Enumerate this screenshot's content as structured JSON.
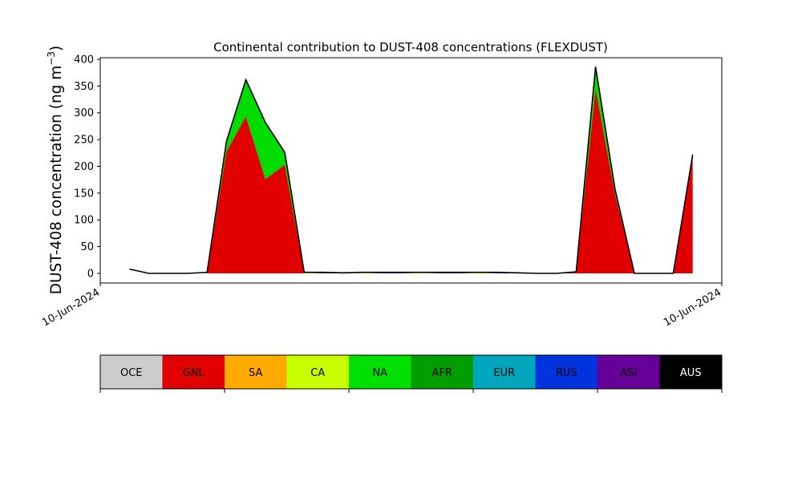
{
  "chart_data": {
    "type": "area",
    "title": "Continental contribution to DUST-408 concentrations (FLEXDUST)",
    "ylabel_main": "DUST-408 concentration (ng m",
    "ylabel_sup": "−3",
    "ylabel_close": ")",
    "xlabel": "",
    "ylim": [
      -18,
      403
    ],
    "yticks": [
      0,
      50,
      100,
      150,
      200,
      250,
      300,
      350,
      400
    ],
    "xlim": [
      -1.5,
      30.5
    ],
    "xtick_labels": [
      "10-Jun-2024",
      "10-Jun-2024"
    ],
    "x": [
      0,
      1,
      2,
      3,
      4,
      5,
      6,
      7,
      8,
      9,
      10,
      11,
      12,
      13,
      14,
      15,
      16,
      17,
      18,
      19,
      20,
      21,
      22,
      23,
      24,
      25,
      26,
      27,
      28,
      29
    ],
    "series": [
      {
        "name": "GNL",
        "color": "#e00000",
        "values": [
          0,
          0,
          0,
          0,
          0,
          228,
          293,
          176,
          203,
          0,
          0,
          0,
          0,
          0,
          0,
          0,
          0,
          0,
          0,
          0,
          0,
          0,
          0,
          2,
          345,
          148,
          0,
          0,
          0,
          218
        ]
      },
      {
        "name": "NA",
        "color": "#00dc00",
        "values": [
          0,
          0,
          0,
          0,
          0,
          19,
          67,
          104,
          22,
          0,
          0,
          0,
          0,
          0,
          0,
          0,
          0,
          0,
          0,
          0,
          0,
          0,
          0,
          0,
          36,
          10,
          0,
          0,
          0,
          0
        ]
      },
      {
        "name": "CA",
        "color": "#c8ff00",
        "values": [
          0,
          0,
          0,
          0,
          0,
          0,
          0,
          0,
          0,
          1,
          0,
          0,
          1,
          0,
          0,
          1,
          0,
          0,
          1,
          0,
          0,
          0,
          0,
          0,
          0,
          0,
          0,
          0,
          0,
          0
        ]
      },
      {
        "name": "RUS",
        "color": "#0033dd",
        "values": [
          0,
          0,
          0,
          0,
          0,
          0,
          0,
          0,
          0,
          1,
          1,
          1,
          1,
          1,
          1,
          1,
          1,
          1,
          1,
          1,
          0,
          0,
          0,
          0,
          0,
          0,
          0,
          0,
          0,
          0
        ]
      }
    ],
    "total": [
      8,
      0,
      0,
      0,
      2,
      247,
      362,
      282,
      226,
      2,
      2,
      1,
      2,
      2,
      2,
      2,
      2,
      2,
      2,
      2,
      1,
      0,
      0,
      3,
      386,
      158,
      0,
      0,
      0,
      222
    ],
    "grid": false,
    "legend": {
      "placement": "bottom",
      "entries": [
        {
          "label": "OCE",
          "color": "#cccccc",
          "text_color": "#000000"
        },
        {
          "label": "GNL",
          "color": "#e00000",
          "text_color": "#000000"
        },
        {
          "label": "SA",
          "color": "#ffaa00",
          "text_color": "#000000"
        },
        {
          "label": "CA",
          "color": "#c8ff00",
          "text_color": "#000000"
        },
        {
          "label": "NA",
          "color": "#00e000",
          "text_color": "#000000"
        },
        {
          "label": "AFR",
          "color": "#009e00",
          "text_color": "#000000"
        },
        {
          "label": "EUR",
          "color": "#00a6bb",
          "text_color": "#000000"
        },
        {
          "label": "RUS",
          "color": "#0033dd",
          "text_color": "#000000"
        },
        {
          "label": "ASI",
          "color": "#660099",
          "text_color": "#000000"
        },
        {
          "label": "AUS",
          "color": "#000000",
          "text_color": "#ffffff"
        }
      ]
    }
  }
}
